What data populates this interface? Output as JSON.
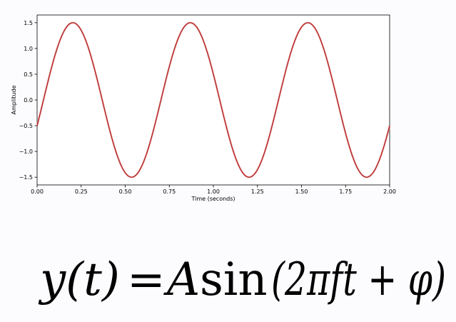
{
  "chart_data": {
    "type": "line",
    "title": "",
    "xlabel": "Time (seconds)",
    "ylabel": "Amplitude",
    "xlim": [
      0,
      2
    ],
    "ylim": [
      -1.65,
      1.65
    ],
    "xticks": [
      "0.00",
      "0.25",
      "0.50",
      "0.75",
      "1.00",
      "1.25",
      "1.50",
      "1.75",
      "2.00"
    ],
    "yticks": [
      "1.5",
      "1.0",
      "0.5",
      "0.0",
      "−0.5",
      "−1.0",
      "−1.5"
    ],
    "xtick_values": [
      0,
      0.25,
      0.5,
      0.75,
      1.0,
      1.25,
      1.5,
      1.75,
      2.0
    ],
    "ytick_values": [
      1.5,
      1.0,
      0.5,
      0.0,
      -0.5,
      -1.0,
      -1.5
    ],
    "grid": false,
    "series": [
      {
        "color": "#b22222",
        "function": "sine",
        "amplitude": 1.5,
        "frequency": 1.5,
        "phase": -0.3398
      }
    ]
  },
  "formula": {
    "lhs": "y(t)",
    "equals": "=",
    "rhs_a": "A",
    "rhs_sin": "sin",
    "rhs_args": "(2πft + φ)"
  }
}
